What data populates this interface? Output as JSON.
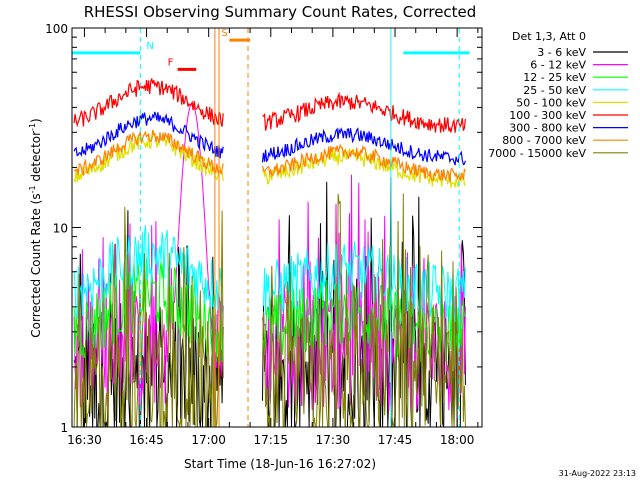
{
  "chart_data": {
    "type": "line",
    "title": "RHESSI Observing Summary Count Rates, Corrected",
    "xlabel": "Start Time (18-Jun-16 16:27:02)",
    "ylabel_main": "Corrected Count Rate (s",
    "ylabel_sup1": "-1",
    "ylabel_mid": " detector",
    "ylabel_sup2": "-1",
    "ylabel_end": ")",
    "y_scale": "log",
    "ylim": [
      1,
      100
    ],
    "yticks": [
      {
        "value": 1,
        "label": "1"
      },
      {
        "value": 10,
        "label": "10"
      },
      {
        "value": 100,
        "label": "100"
      }
    ],
    "xlim_minutes": [
      -3,
      96
    ],
    "xticks": [
      {
        "minutes": 0,
        "label": "16:30"
      },
      {
        "minutes": 15,
        "label": "16:45"
      },
      {
        "minutes": 30,
        "label": "17:00"
      },
      {
        "minutes": 45,
        "label": "17:15"
      },
      {
        "minutes": 60,
        "label": "17:30"
      },
      {
        "minutes": 75,
        "label": "17:45"
      },
      {
        "minutes": 90,
        "label": "18:00"
      }
    ],
    "data_gap_minutes": [
      33.5,
      43
    ],
    "legend_header": "Det 1,3, Att 0",
    "legend_position": "right",
    "series": [
      {
        "name": "3 - 6 keV",
        "color": "#000000",
        "level": 1.6,
        "noise": 0.7,
        "spiky": true
      },
      {
        "name": "6 - 12 keV",
        "color": "#ff00ff",
        "level": 2.4,
        "noise": 0.5,
        "spiky": true
      },
      {
        "name": "12 - 25 keV",
        "color": "#00ff00",
        "level": 2.9,
        "noise": 0.3,
        "spiky": false
      },
      {
        "name": "25 - 50 keV",
        "color": "#00ffff",
        "level": 4.6,
        "noise": 0.25,
        "spiky": false
      },
      {
        "name": "50 - 100 keV",
        "color": "#e0e000",
        "level": 17,
        "noise": 0.07,
        "spiky": false
      },
      {
        "name": "100 - 300 keV",
        "color": "#ff0000",
        "level": 32,
        "noise": 0.07,
        "spiky": false
      },
      {
        "name": "300 - 800 keV",
        "color": "#0000ff",
        "level": 22,
        "noise": 0.06,
        "spiky": false
      },
      {
        "name": "800 - 7000 keV",
        "color": "#ff8000",
        "level": 18,
        "noise": 0.06,
        "spiky": false
      },
      {
        "name": "7000 - 15000 keV",
        "color": "#808000",
        "level": 1.7,
        "noise": 0.6,
        "spiky": true
      }
    ],
    "annotations": [
      {
        "label": "N",
        "color": "#00ffff",
        "intervals": [
          [
            -3,
            13.5
          ],
          [
            77,
            93
          ]
        ],
        "y": 75
      },
      {
        "label": "F",
        "color": "#ff0000",
        "intervals": [
          [
            22.5,
            27
          ]
        ],
        "y": 62
      },
      {
        "label": "S",
        "color": "#ff8000",
        "intervals": [
          [
            35,
            40
          ]
        ],
        "y": 87
      }
    ],
    "markers": [
      {
        "minutes": 13.5,
        "color": "#00ffff",
        "style": "dashed"
      },
      {
        "minutes": 31.5,
        "color": "#ff8000",
        "style": "solid"
      },
      {
        "minutes": 32.5,
        "color": "#ff8000",
        "style": "solid"
      },
      {
        "minutes": 39.5,
        "color": "#ff8000",
        "style": "dashed"
      },
      {
        "minutes": 74,
        "color": "#00ffff",
        "style": "solid"
      },
      {
        "minutes": 90.5,
        "color": "#00ffff",
        "style": "dashed"
      }
    ],
    "timestamp": "31-Aug-2022 23:13"
  }
}
